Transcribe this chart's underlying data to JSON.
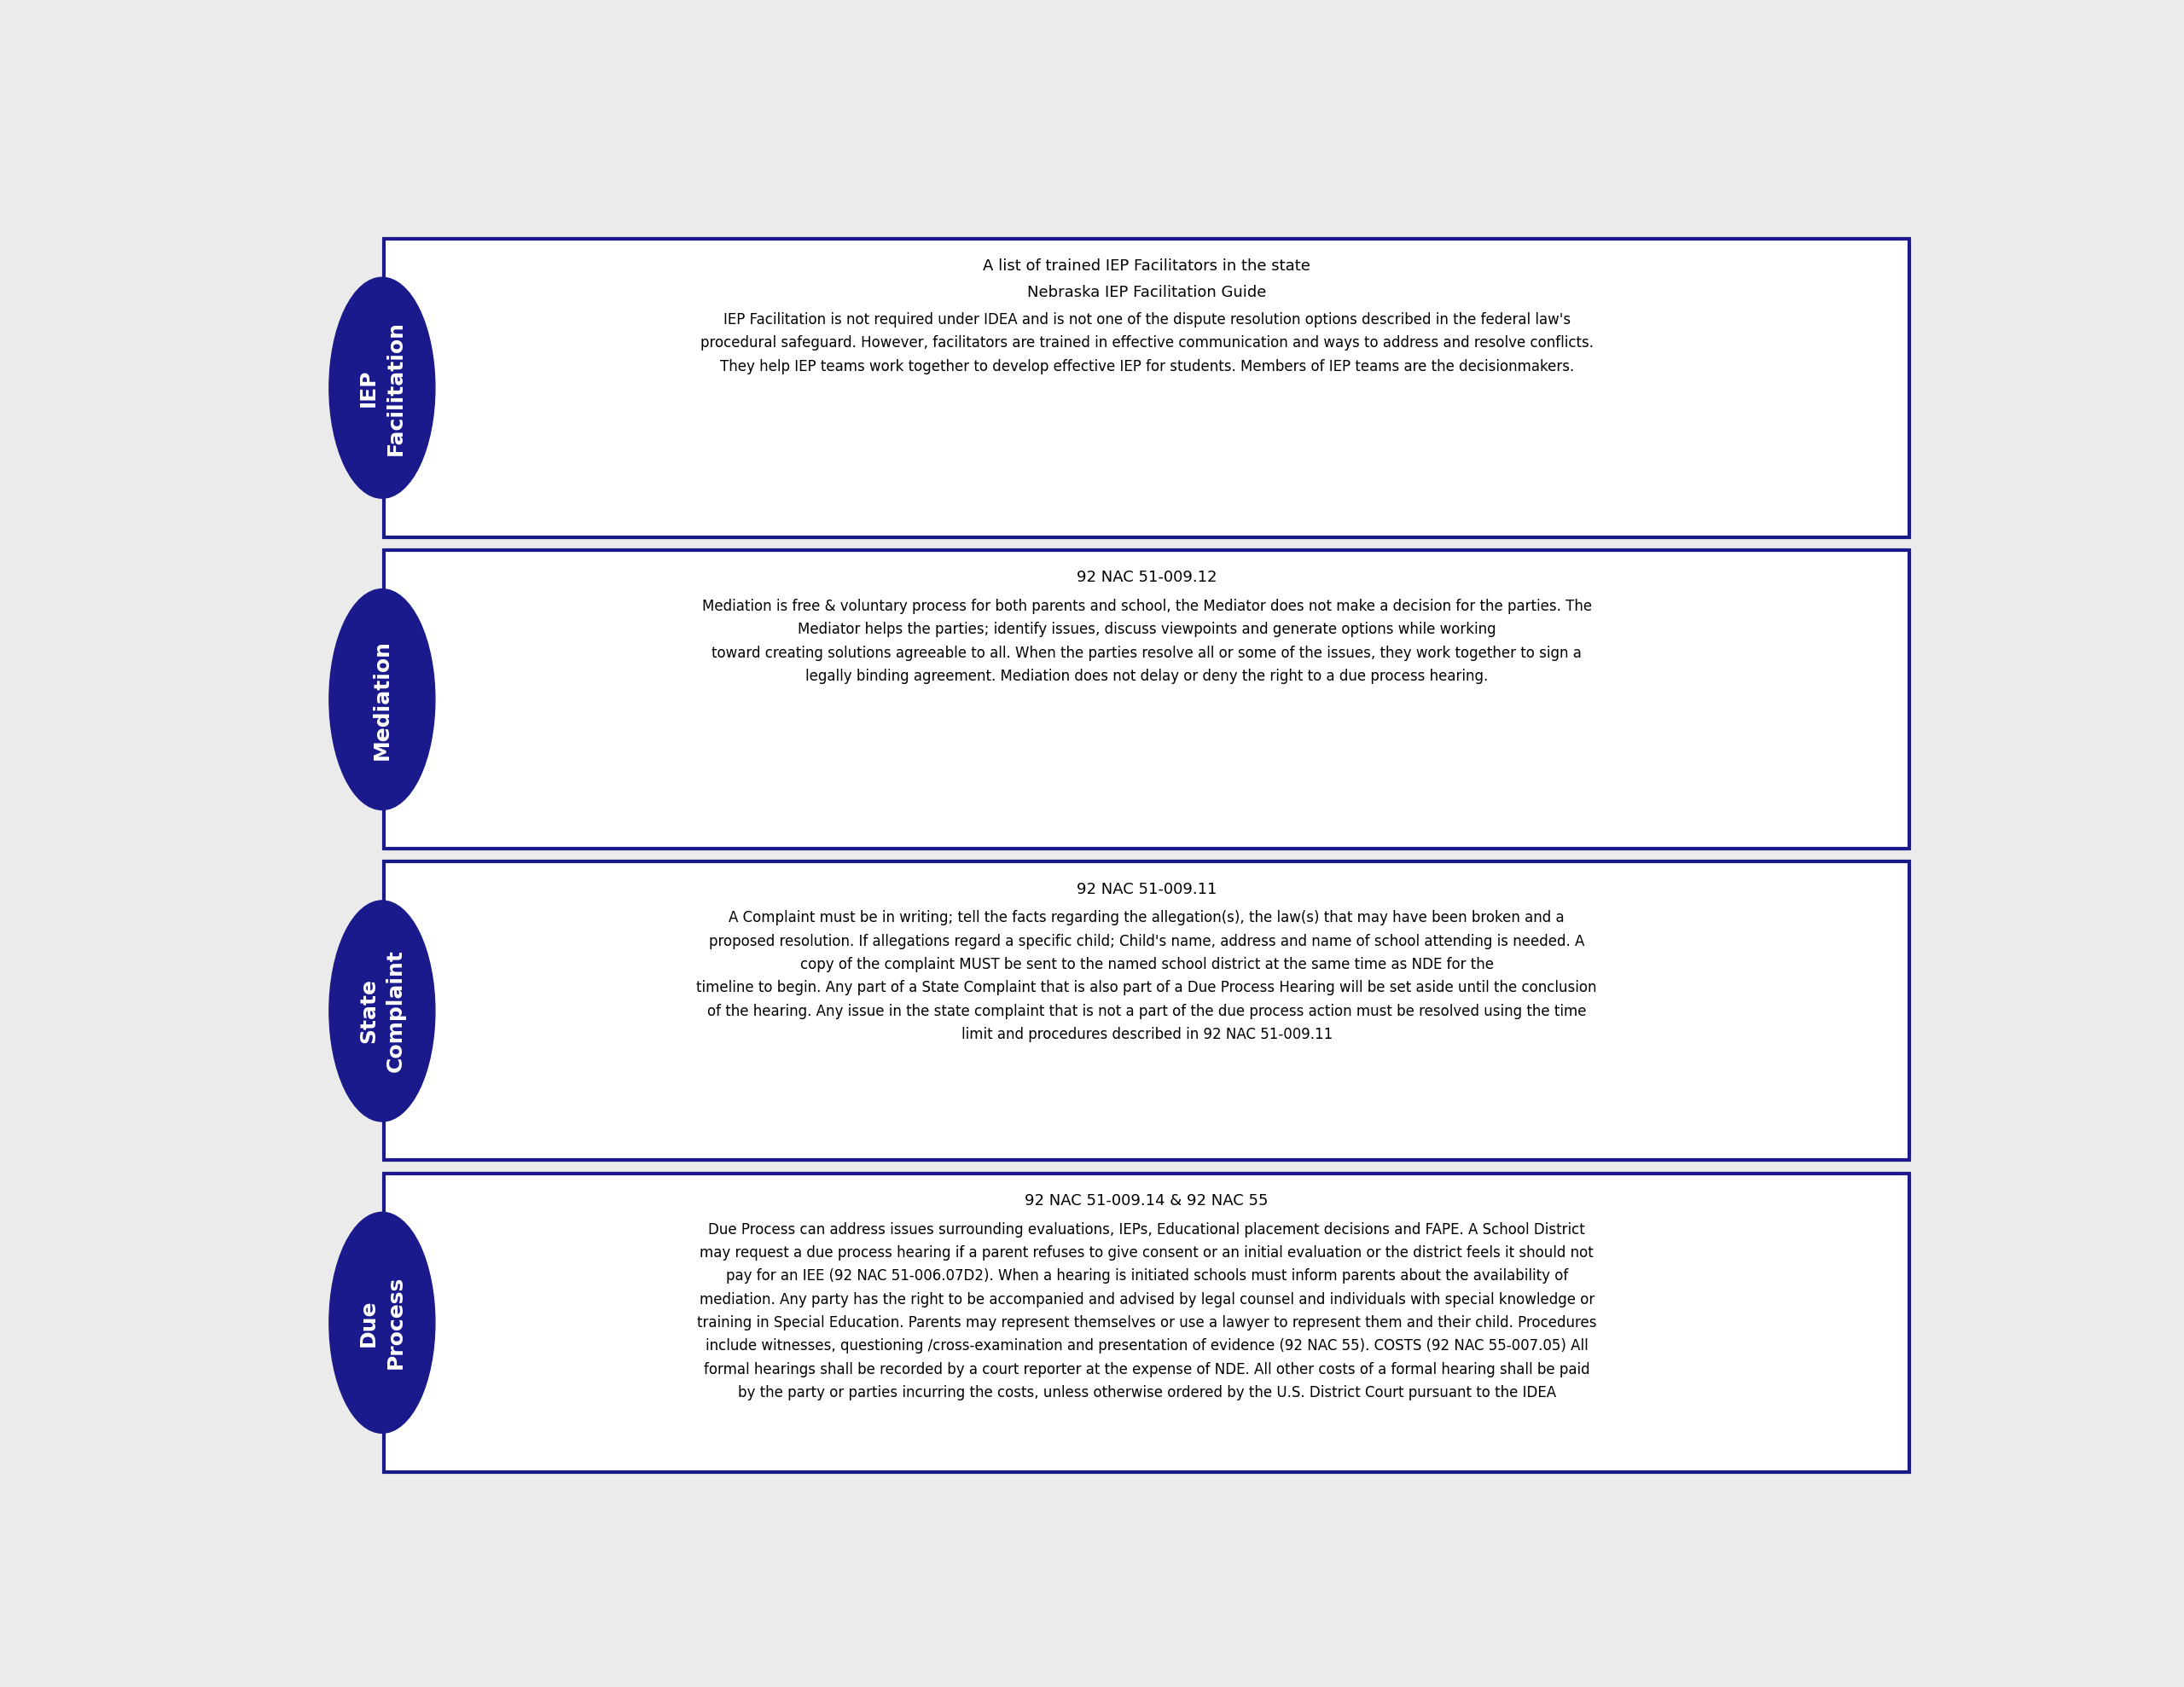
{
  "background_color": "#ebebeb",
  "panel_bg": "#ffffff",
  "oval_color": "#1a1a8c",
  "oval_text_color": "#ffffff",
  "border_color": "#1a1a8c",
  "title_color": "#000000",
  "body_color": "#000000",
  "sections": [
    {
      "oval_lines": [
        "IEP",
        "Facilitation"
      ],
      "title1": "A list of trained IEP Facilitators in the state",
      "title2": "Nebraska IEP Facilitation Guide",
      "body": "IEP Facilitation is not required under IDEA and is not one of the dispute resolution options described in the federal law's\nprocedural safeguard. However, facilitators are trained in effective communication and ways to address and resolve conflicts.\nThey help IEP teams work together to develop effective IEP for students. Members of IEP teams are the decisionmakers."
    },
    {
      "oval_lines": [
        "Mediation"
      ],
      "title1": "92 NAC 51-009.12",
      "title2": "",
      "body": "Mediation is free & voluntary process for both parents and school, the Mediator does not make a decision for the parties. The\nMediator helps the parties; identify issues, discuss viewpoints and generate options while working\ntoward creating solutions agreeable to all. When the parties resolve all or some of the issues, they work together to sign a\nlegally binding agreement. Mediation does not delay or deny the right to a due process hearing."
    },
    {
      "oval_lines": [
        "State",
        "Complaint"
      ],
      "title1": "92 NAC 51-009.11",
      "title2": "",
      "body": "A Complaint must be in writing; tell the facts regarding the allegation(s), the law(s) that may have been broken and a\nproposed resolution. If allegations regard a specific child; Child's name, address and name of school attending is needed. A\ncopy of the complaint MUST be sent to the named school district at the same time as NDE for the\ntimeline to begin. Any part of a State Complaint that is also part of a Due Process Hearing will be set aside until the conclusion\nof the hearing. Any issue in the state complaint that is not a part of the due process action must be resolved using the time\nlimit and procedures described in 92 NAC 51-009.11"
    },
    {
      "oval_lines": [
        "Due",
        "Process"
      ],
      "title1": "92 NAC 51-009.14 & 92 NAC 55",
      "title2": "",
      "body": "Due Process can address issues surrounding evaluations, IEPs, Educational placement decisions and FAPE. A School District\nmay request a due process hearing if a parent refuses to give consent or an initial evaluation or the district feels it should not\npay for an IEE (92 NAC 51-006.07D2). When a hearing is initiated schools must inform parents about the availability of\nmediation. Any party has the right to be accompanied and advised by legal counsel and individuals with special knowledge or\ntraining in Special Education. Parents may represent themselves or use a lawyer to represent them and their child. Procedures\ninclude witnesses, questioning /cross-examination and presentation of evidence (92 NAC 55). COSTS (92 NAC 55-007.05) All\nformal hearings shall be recorded by a court reporter at the expense of NDE. All other costs of a formal hearing shall be paid\nby the party or parties incurring the costs, unless otherwise ordered by the U.S. District Court pursuant to the IDEA"
    }
  ]
}
